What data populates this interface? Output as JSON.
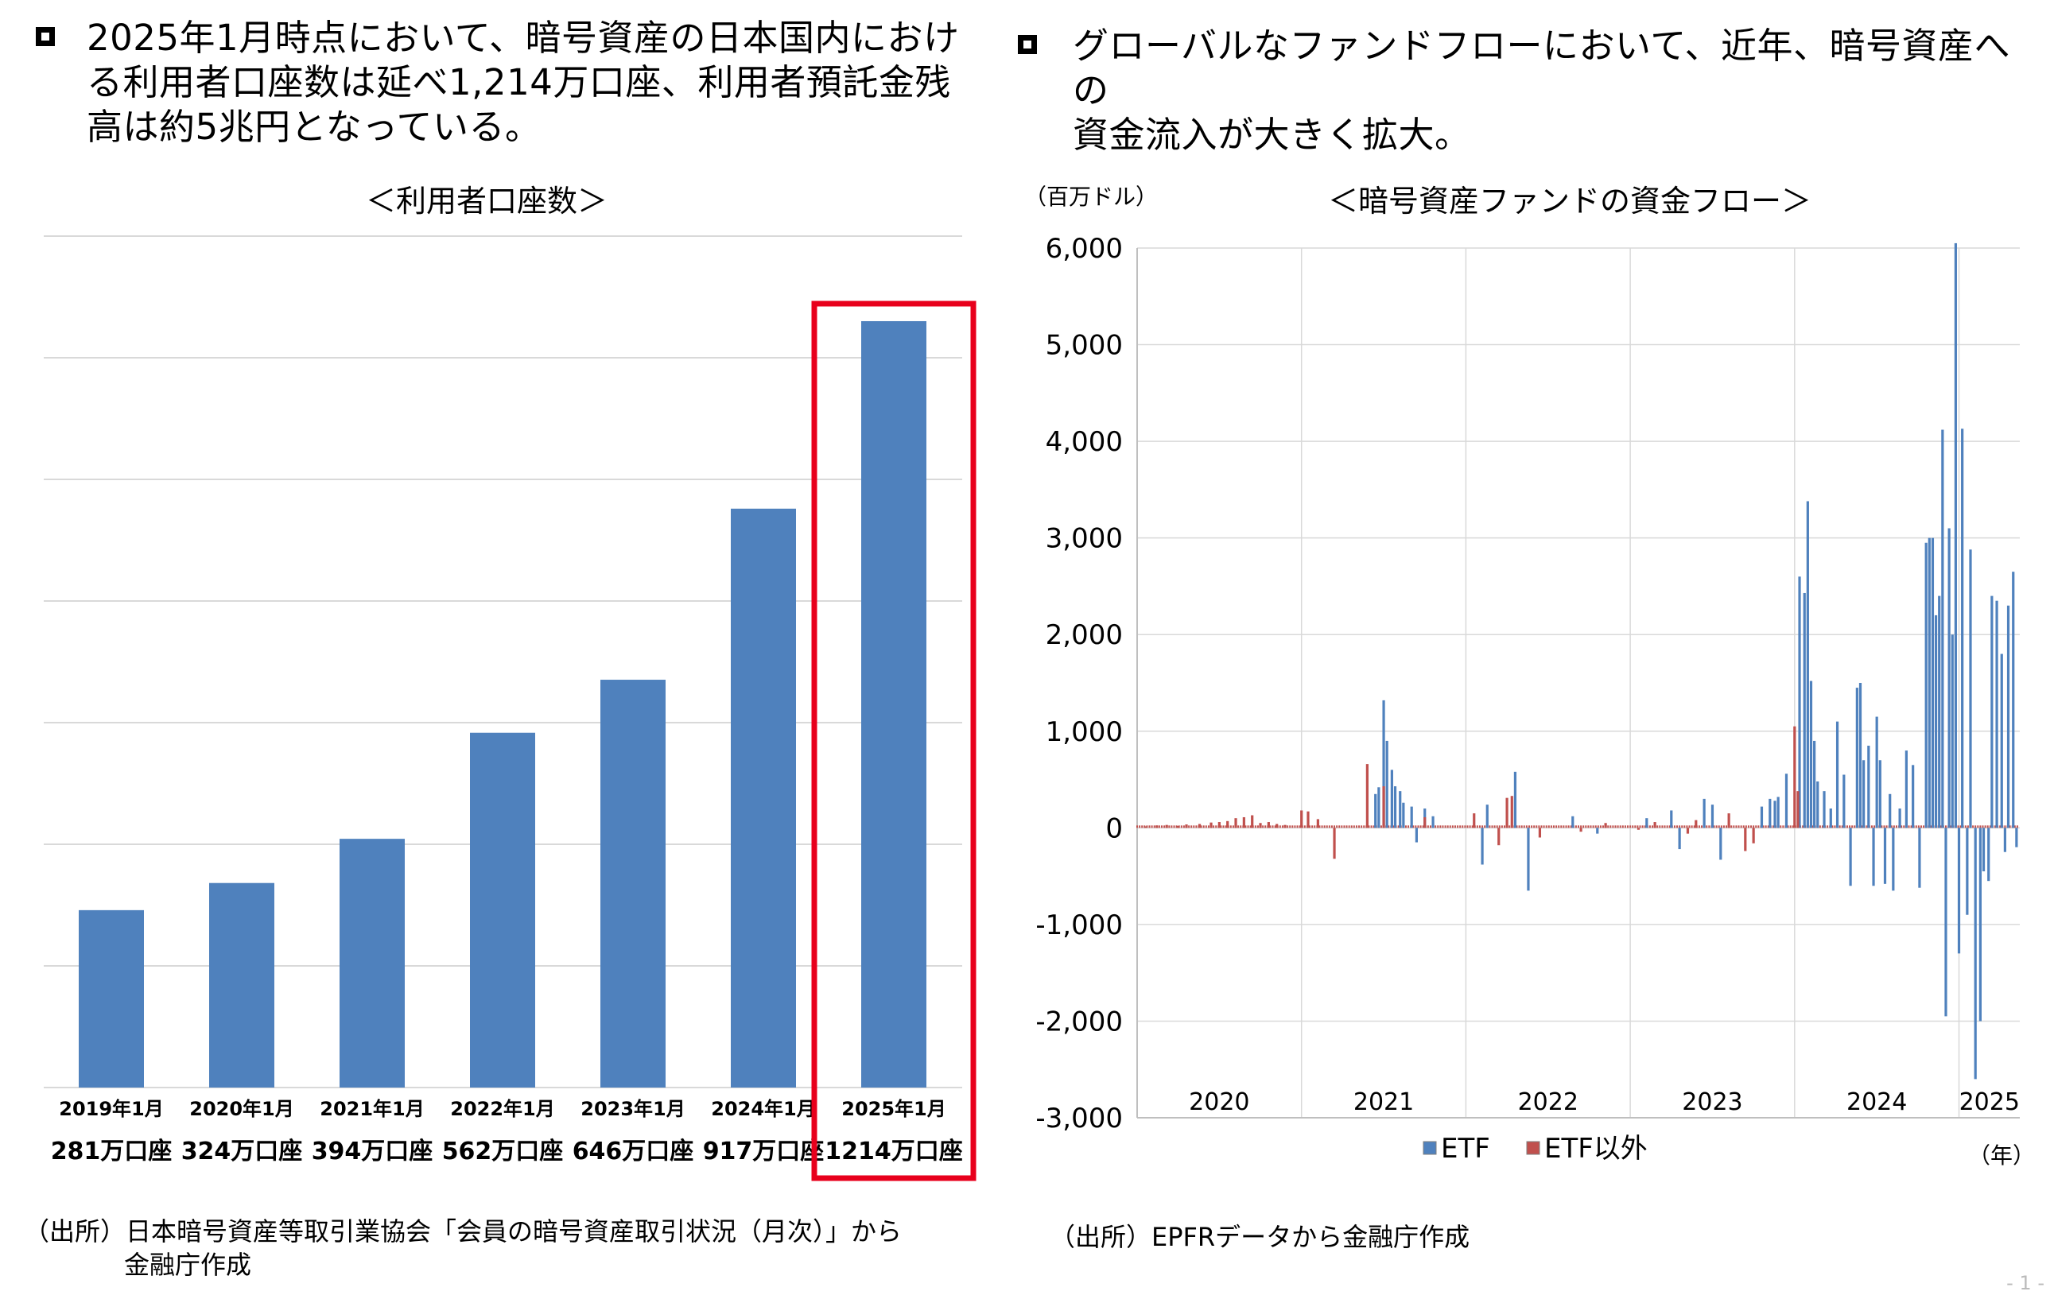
{
  "left": {
    "heading": "2025年1月時点において、暗号資産の日本国内における利用者口座数は延べ1,214万口座、利用者預託金残高は約5兆円となっている。",
    "heading_lines": [
      "2025年1月時点において、暗号資産の日本国内にお",
      "る利用者口座数は延べ1,214万口座、利用者預託金残",
      "高は約5兆円となっている。"
    ],
    "heading_glyph_end": "け",
    "source_line1": "（出所）日本暗号資産等取引業協会「会員の暗号資産取引状況（月次）」から",
    "source_line2": "金融庁作成"
  },
  "right": {
    "heading_line1": "グローバルなファンドフローにおいて、近年、暗号資産への",
    "heading_line2": "資金流入が大きく拡大。",
    "unit": "（百万ドル）",
    "x_unit": "（年）",
    "source": "（出所）EPFRデータから金融庁作成"
  },
  "page_number": "- 1 -",
  "colors": {
    "bar": "#4f81bd",
    "etf": "#4f81bd",
    "non_etf": "#c0504d",
    "highlight": "#e8001c",
    "grid": "#d9d9d9"
  },
  "chart_data": [
    {
      "type": "bar",
      "title": "＜利用者口座数＞",
      "categories": [
        "2019年1月",
        "2020年1月",
        "2021年1月",
        "2022年1月",
        "2023年1月",
        "2024年1月",
        "2025年1月"
      ],
      "value_labels": [
        "281万口座",
        "324万口座",
        "394万口座",
        "562万口座",
        "646万口座",
        "917万口座",
        "1214万口座"
      ],
      "values": [
        281,
        324,
        394,
        562,
        646,
        917,
        1214
      ],
      "highlight_index": 6,
      "grid": true
    },
    {
      "type": "bar",
      "title": "＜暗号資産ファンドの資金フロー＞",
      "ylabel": "（百万ドル）",
      "xlabel": "（年）",
      "ylim": [
        -3000,
        6000
      ],
      "yticks": [
        "-3,000",
        "-2,000",
        "-1,000",
        "0",
        "1,000",
        "2,000",
        "3,000",
        "4,000",
        "5,000",
        "6,000"
      ],
      "year_labels": [
        "2020",
        "2021",
        "2022",
        "2023",
        "2024",
        "2025"
      ],
      "year_starts": [
        2020,
        2021,
        2022,
        2023,
        2024,
        2025
      ],
      "x_range": [
        2020,
        2025.37
      ],
      "legend": [
        "ETF",
        "ETF以外"
      ],
      "series": [
        {
          "name": "ETF",
          "x": [
            2021.45,
            2021.47,
            2021.5,
            2021.52,
            2021.55,
            2021.57,
            2021.6,
            2021.62,
            2021.67,
            2021.7,
            2021.75,
            2021.8,
            2022.1,
            2022.13,
            2022.3,
            2022.38,
            2022.65,
            2022.8,
            2023.1,
            2023.25,
            2023.3,
            2023.45,
            2023.5,
            2023.55,
            2023.8,
            2023.85,
            2023.88,
            2023.9,
            2023.95,
            2024.03,
            2024.06,
            2024.08,
            2024.1,
            2024.12,
            2024.14,
            2024.18,
            2024.22,
            2024.26,
            2024.3,
            2024.34,
            2024.38,
            2024.4,
            2024.42,
            2024.45,
            2024.48,
            2024.5,
            2024.52,
            2024.55,
            2024.58,
            2024.6,
            2024.64,
            2024.68,
            2024.72,
            2024.76,
            2024.8,
            2024.82,
            2024.84,
            2024.86,
            2024.88,
            2024.9,
            2024.92,
            2024.94,
            2024.96,
            2024.98,
            2025.0,
            2025.02,
            2025.05,
            2025.07,
            2025.1,
            2025.13,
            2025.15,
            2025.18,
            2025.2,
            2025.23,
            2025.26,
            2025.28,
            2025.3,
            2025.33,
            2025.35
          ],
          "values": [
            350,
            420,
            1320,
            900,
            600,
            430,
            380,
            260,
            220,
            -150,
            200,
            120,
            -380,
            240,
            580,
            -650,
            120,
            -60,
            100,
            180,
            -220,
            300,
            240,
            -330,
            220,
            300,
            280,
            320,
            560,
            2600,
            2430,
            3380,
            1520,
            900,
            480,
            380,
            200,
            1100,
            550,
            -600,
            1450,
            1500,
            700,
            850,
            -600,
            1150,
            700,
            -580,
            350,
            -650,
            200,
            800,
            650,
            -620,
            2950,
            3000,
            3000,
            2200,
            2400,
            4120,
            -1950,
            3100,
            2000,
            6050,
            -1300,
            4130,
            -900,
            2880,
            -2600,
            -2000,
            -450,
            -550,
            2400,
            2350,
            1800,
            -250,
            2300,
            2650,
            -200
          ]
        },
        {
          "name": "ETF以外",
          "x": [
            2020.05,
            2020.12,
            2020.18,
            2020.25,
            2020.3,
            2020.38,
            2020.45,
            2020.5,
            2020.55,
            2020.6,
            2020.65,
            2020.7,
            2020.75,
            2020.8,
            2020.85,
            2020.9,
            2021.0,
            2021.04,
            2021.1,
            2021.2,
            2021.4,
            2021.5,
            2021.75,
            2022.05,
            2022.2,
            2022.25,
            2022.28,
            2022.45,
            2022.7,
            2022.85,
            2023.05,
            2023.15,
            2023.35,
            2023.4,
            2023.6,
            2023.7,
            2023.75,
            2024.0,
            2024.02
          ],
          "values": [
            15,
            25,
            30,
            20,
            35,
            40,
            55,
            60,
            70,
            100,
            110,
            130,
            50,
            60,
            40,
            30,
            180,
            170,
            90,
            -320,
            660,
            430,
            110,
            150,
            -180,
            310,
            330,
            -100,
            -40,
            50,
            -20,
            60,
            -60,
            80,
            150,
            -240,
            -160,
            1050,
            380
          ]
        }
      ]
    }
  ]
}
